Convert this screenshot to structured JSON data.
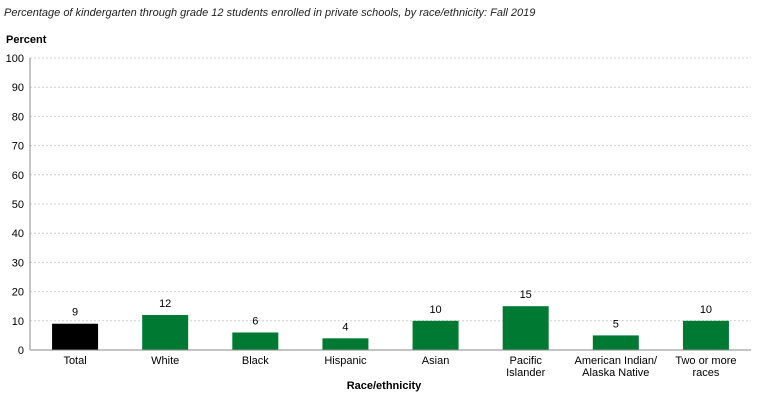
{
  "chart_data": {
    "type": "bar",
    "title": "Percentage of kindergarten through grade 12 students enrolled in private schools, by race/ethnicity: Fall 2019",
    "ylabel": "Percent",
    "xlabel": "Race/ethnicity",
    "ylim": [
      0,
      100
    ],
    "yticks": [
      0,
      10,
      20,
      30,
      40,
      50,
      60,
      70,
      80,
      90,
      100
    ],
    "grid": true,
    "categories": [
      [
        "Total"
      ],
      [
        "White"
      ],
      [
        "Black"
      ],
      [
        "Hispanic"
      ],
      [
        "Asian"
      ],
      [
        "Pacific",
        "Islander"
      ],
      [
        "American Indian/",
        "Alaska Native"
      ],
      [
        "Two or more",
        "races"
      ]
    ],
    "values": [
      9,
      12,
      6,
      4,
      10,
      15,
      5,
      10
    ],
    "value_labels": [
      "9",
      "12",
      "6",
      "4",
      "10",
      "15",
      "5",
      "10"
    ],
    "colors": [
      "#000000",
      "#007a33",
      "#007a33",
      "#007a33",
      "#007a33",
      "#007a33",
      "#007a33",
      "#007a33"
    ]
  }
}
